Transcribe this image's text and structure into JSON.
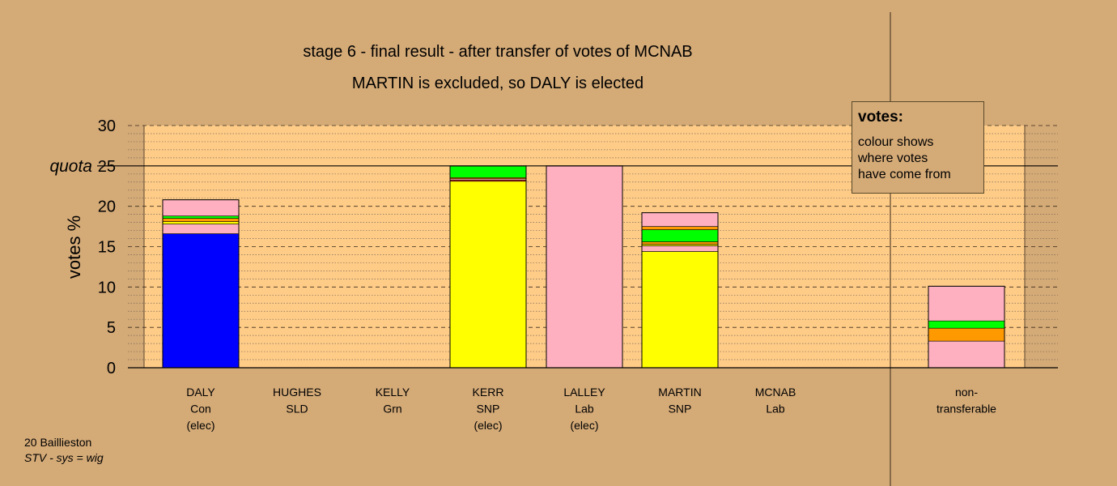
{
  "title": {
    "line1": "stage 6 - final result - after transfer of votes of MCNAB",
    "line2": "MARTIN is excluded, so DALY is elected"
  },
  "legend": {
    "title": "votes:",
    "lines": [
      "colour shows",
      "where votes",
      "have come from"
    ]
  },
  "footer": {
    "ward": "20 Baillieston",
    "system": "STV - sys = wig"
  },
  "colors": {
    "background": "#d4aa77",
    "plot": "#ffcc88",
    "Con": "#0000ff",
    "SNP": "#ffff00",
    "Lab": "#ffb0c0",
    "SLD": "#ff9900",
    "Grn": "#00ff00",
    "red_band": "#ff3333"
  },
  "chart_data": {
    "type": "bar",
    "stacked": true,
    "ylabel": "votes %",
    "ylim": [
      0,
      30
    ],
    "yticks": [
      0,
      5,
      10,
      15,
      20,
      25,
      30
    ],
    "quota": 25,
    "quota_label": "quota",
    "categories": [
      {
        "name": "DALY",
        "party": "Con",
        "status": "(elec)"
      },
      {
        "name": "HUGHES",
        "party": "SLD",
        "status": ""
      },
      {
        "name": "KELLY",
        "party": "Grn",
        "status": ""
      },
      {
        "name": "KERR",
        "party": "SNP",
        "status": "(elec)"
      },
      {
        "name": "LALLEY",
        "party": "Lab",
        "status": "(elec)"
      },
      {
        "name": "MARTIN",
        "party": "SNP",
        "status": ""
      },
      {
        "name": "MCNAB",
        "party": "Lab",
        "status": ""
      },
      {
        "name": "non-",
        "party": "transferable",
        "status": ""
      }
    ],
    "stacks": [
      [
        {
          "source": "Con",
          "value": 16.6
        },
        {
          "source": "Lab",
          "value": 1.2
        },
        {
          "source": "SNP",
          "value": 0.3
        },
        {
          "source": "SLD",
          "value": 0.4
        },
        {
          "source": "Grn",
          "value": 0.3
        },
        {
          "source": "Lab",
          "value": 2.0
        }
      ],
      [],
      [],
      [
        {
          "source": "SNP",
          "value": 23.1
        },
        {
          "source": "red_band",
          "value": 0.15
        },
        {
          "source": "Lab",
          "value": 0.15
        },
        {
          "source": "SLD",
          "value": 0.15
        },
        {
          "source": "Grn",
          "value": 1.45
        }
      ],
      [
        {
          "source": "Lab",
          "value": 25.0
        }
      ],
      [
        {
          "source": "SNP",
          "value": 14.4
        },
        {
          "source": "Lab",
          "value": 0.7
        },
        {
          "source": "SNP",
          "value": 0.2
        },
        {
          "source": "SLD",
          "value": 0.3
        },
        {
          "source": "Grn",
          "value": 1.5
        },
        {
          "source": "SLD",
          "value": 0.4
        },
        {
          "source": "Lab",
          "value": 1.7
        }
      ],
      [],
      [
        {
          "source": "Lab",
          "value": 3.3
        },
        {
          "source": "SLD",
          "value": 1.6
        },
        {
          "source": "Grn",
          "value": 0.9
        },
        {
          "source": "Lab",
          "value": 4.3
        }
      ]
    ]
  }
}
